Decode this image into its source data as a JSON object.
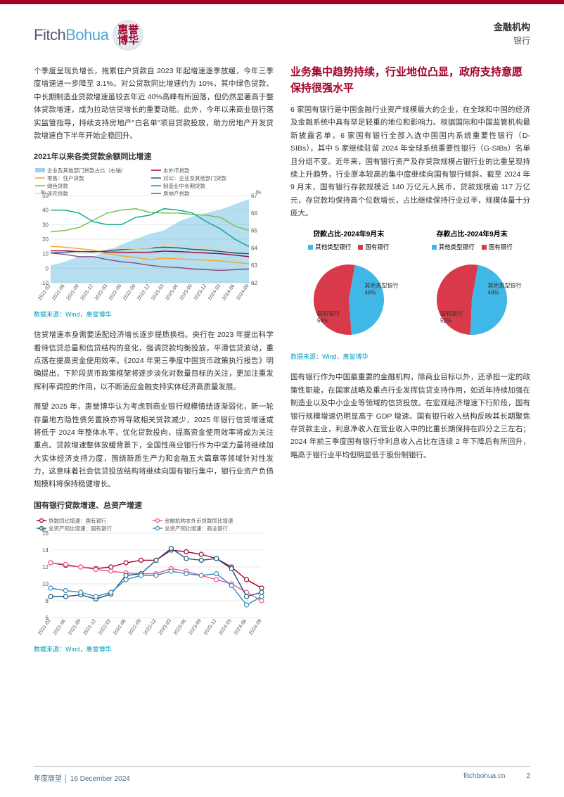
{
  "header": {
    "logo_latin_1": "Fitch",
    "logo_latin_2": "Bohua",
    "logo_cn_1": "惠誉",
    "logo_cn_2": "博华",
    "category": "金融机构",
    "subcategory": "银行"
  },
  "left": {
    "p1": "个季度呈现负增长，拖累住户贷款自 2023 年起增速逐季放缓，今年三季度增速进一步降至 3.1%。对公贷款同比增速约为 10%，其中绿色贷款、中长期制造业贷款增速虽较去年近 40%高峰有所回落，但仍然显著高于整体贷款增速，成为拉动信贷增长的重要动能。此外，今年以来商业银行落实监管指导，持续支持房地产\"白名单\"项目贷款投放，助力房地产开发贷款增速自下半年开始企稳回升。",
    "chart1": {
      "title": "2021年以来各类贷款余额同比增速",
      "source": "数据来源：Wind，惠誉博华",
      "legend": [
        {
          "label": "企业及其他部门贷款占比（右轴）",
          "color": "#5db6e0",
          "type": "area"
        },
        {
          "label": "本外币贷款",
          "color": "#a30028",
          "type": "line"
        },
        {
          "label": "零售：住户贷款",
          "color": "#f5a623",
          "type": "line"
        },
        {
          "label": "对公：企业及其他部门贷款",
          "color": "#1b5a7a",
          "type": "line"
        },
        {
          "label": "绿色贷款",
          "color": "#6fbf4a",
          "type": "line"
        },
        {
          "label": "制造业中长期贷款",
          "color": "#00a88e",
          "type": "line"
        },
        {
          "label": "涉农贷款",
          "color": "#d8d8a8",
          "type": "line"
        },
        {
          "label": "房地产贷款",
          "color": "#8b4a7a",
          "type": "line"
        }
      ],
      "y_left": {
        "label": "%",
        "min": -10,
        "max": 50,
        "step": 10
      },
      "y_right": {
        "label": "%",
        "min": 62,
        "max": 67,
        "step": 1
      },
      "x_labels": [
        "2021-03",
        "2021-06",
        "2021-09",
        "2021-12",
        "2022-03",
        "2022-06",
        "2022-09",
        "2022-12",
        "2023-03",
        "2023-06",
        "2023-09",
        "2023-12",
        "2024-03",
        "2024-06",
        "2024-09"
      ],
      "series": {
        "area_right": [
          63.0,
          63.2,
          63.5,
          63.5,
          63.8,
          64.2,
          64.5,
          64.8,
          65.0,
          65.5,
          65.8,
          66.0,
          66.2,
          66.5,
          66.8
        ],
        "本外币贷款": [
          12,
          12,
          11.5,
          11.5,
          11.2,
          11,
          11,
          11,
          11.8,
          11.5,
          11,
          10.5,
          10,
          9,
          8
        ],
        "住户贷款": [
          15,
          14.5,
          13.5,
          12.5,
          10,
          8.5,
          7.5,
          6,
          7,
          6.5,
          6,
          5.5,
          5,
          4,
          3.1
        ],
        "企业及其他部门贷款": [
          10.5,
          11,
          11.5,
          11.2,
          12,
          12.8,
          13.5,
          13.8,
          14.5,
          14,
          13,
          12.5,
          11.5,
          10.5,
          10
        ],
        "绿色贷款": [
          25,
          26,
          28,
          33,
          38,
          40,
          41,
          38.5,
          38,
          38,
          37,
          36.5,
          35,
          29,
          26
        ],
        "制造业中长期贷款": [
          40,
          40,
          38,
          32,
          30,
          30,
          35,
          36.5,
          41,
          40,
          38,
          32,
          27,
          20,
          15
        ],
        "涉农贷款": [
          null,
          null,
          null,
          null,
          13,
          13.5,
          13.5,
          14,
          16.5,
          16,
          15.5,
          15,
          13.5,
          12,
          11
        ],
        "房地产贷款": [
          10.5,
          9.5,
          8,
          8,
          6,
          4.5,
          3.5,
          2,
          1,
          0.5,
          -0.5,
          -1,
          -1.5,
          -1,
          -0.5
        ]
      },
      "fontsize_axis": 8,
      "grid_color": "#d0d4da",
      "bg": "#ffffff"
    },
    "p2": "信贷增速本身需要适配经济增长逐步提质换档。央行在 2023 年提出科学看待信贷总量和信贷结构的变化，强调贷款均衡投放，平滑信贷波动，重点落在提高资金使用效率。《2024 年第三季度中国货币政策执行报告》明确提出，下阶段货币政策框架将逐步淡化对数量目标的关注，更加注重发挥利率调控的作用，以不断适应金融支持实体经济高质量发展。",
    "p3": "展望 2025 年，惠誉博华认为考虑到商业银行规模情结逐渐弱化，新一轮存量地方隐性债务置换亦将导致相关贷款减少，2025 年银行信贷增速或将低于 2024 年整体水平，优化贷款投向，提高资金使用效率将成为关注重点。贷款增速整体放缓背景下，全国性商业银行作为中坚力量将继续加大实体经济支持力度，围绕新质生产力和金融五大篇章等领域针对性发力，这意味着社会信贷投放结构将继续向国有银行集中，银行业资产负债规模料将保持稳健增长。",
    "chart2": {
      "title": "国有银行贷款增速、总资产增速",
      "source": "数据来源：Wind，惠誉博华",
      "legend": [
        {
          "label": "贷款同比增速：国有银行",
          "color": "#a30028",
          "marker": "circle"
        },
        {
          "label": "金融机构本外币贷款同比增速",
          "color": "#e85a8a",
          "marker": "circle"
        },
        {
          "label": "总资产同比增速：国有银行",
          "color": "#1b5a7a",
          "marker": "circle"
        },
        {
          "label": "总资产同比增速：商业银行",
          "color": "#3a8ac0",
          "marker": "circle"
        }
      ],
      "y": {
        "label": "%",
        "min": 6,
        "max": 16,
        "step": 2
      },
      "x_labels": [
        "2021-03",
        "2021-06",
        "2021-09",
        "2021-12",
        "2022-03",
        "2022-06",
        "2022-09",
        "2022-12",
        "2023-03",
        "2023-06",
        "2023-09",
        "2023-12",
        "2024-03",
        "2024-06",
        "2024-09"
      ],
      "series": {
        "贷款国有": [
          12.5,
          12.2,
          12,
          11.8,
          12,
          12.5,
          12.8,
          12.8,
          14,
          13.8,
          13.5,
          13,
          12,
          10.5,
          9.5
        ],
        "本外币贷款": [
          12.5,
          12.3,
          12,
          11.7,
          11.5,
          11.3,
          11.2,
          11.2,
          11.8,
          11.5,
          11,
          10.5,
          10,
          9,
          8
        ],
        "总资产国有": [
          8.5,
          8.5,
          8.7,
          8.2,
          8.8,
          11,
          11.2,
          12.8,
          14.2,
          13,
          12.8,
          13,
          11.8,
          8.5,
          9
        ],
        "总资产商业": [
          9.5,
          9.2,
          9,
          8.5,
          9,
          10.5,
          11,
          11,
          11.5,
          11.2,
          11,
          11.2,
          9.8,
          7.5,
          8.5
        ]
      },
      "fontsize_axis": 8,
      "grid_color": "#d0d4da",
      "marker_size": 3
    }
  },
  "right": {
    "section_title": "业务集中趋势持续，行业地位凸显，政府支持意愿保持很强水平",
    "p1": "6 家国有银行是中国金融行业资产规模最大的企业，在全球和中国的经济及金融系统中具有举足轻重的地位和影响力。根据国际和中国监管机构最新披露名单，6 家国有银行全部入选中国国内系统重要性银行（D-SIBs），其中 5 家继续驻留 2024 年全球系统重要性银行（G-SIBs）名单且分组不变。近年来，国有银行资产及存贷款规模占银行业的比重呈现持续上升趋势，行业原本较高的集中度继续向国有银行倾斜。截至 2024 年 9 月末，国有银行存款规模近 140 万亿元人民币，贷款规模逾 117 万亿元，存贷款均保持高个位数增长，占比继续保持行业过半，规模体量十分庞大。",
    "pies": {
      "source": "数据来源：Wind，惠誉博华",
      "legend_other": "其他类型银行",
      "legend_soe": "国有银行",
      "color_other": "#3fb8e8",
      "color_soe": "#d93a4a",
      "left": {
        "title": "贷款占比-2024年9月末",
        "other_label": "其他类型银行",
        "other_pct": "46%",
        "soe_label": "国有银行",
        "soe_pct": "54%",
        "soe_value": 54
      },
      "right": {
        "title": "存款占比-2024年9月末",
        "other_label": "其他类型银行",
        "other_pct": "48%",
        "soe_label": "国有银行",
        "soe_pct": "52%",
        "soe_value": 52
      }
    },
    "p2": "国有银行作为中国最重要的金融机构，除商业目标以外，还承担一定的政策性职能，在国家战略及重点行业发挥信贷支持作用，如近年持续加强在制造业以及中小企业等领域的信贷投放。在宏观经济增速下行阶段，国有银行规模增速仍明显高于 GDP 增速。国有银行收入结构反映其长期聚焦存贷款主业，利息净收入在营业收入中的比重长期保持在四分之三左右；2024 年前三季度国有银行非利息收入占比在连续 2 年下降后有所回升，略高于银行业平均但明显低于股份制银行。"
  },
  "footer": {
    "left": "年度展望  │  16 December 2024",
    "site": "fitchbohua.cn",
    "page": "2"
  }
}
